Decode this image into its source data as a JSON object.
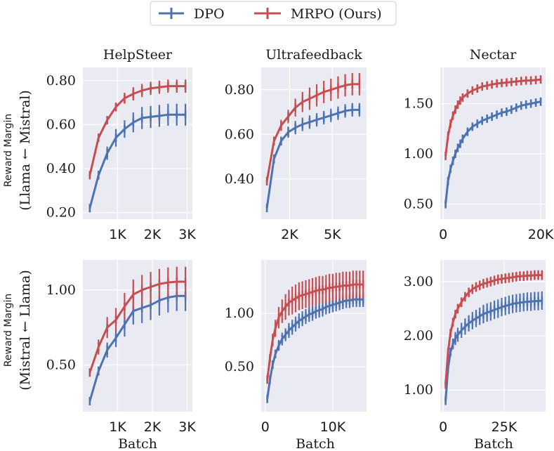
{
  "legend": {
    "entries": [
      {
        "label": "DPO",
        "color": "#4c72b0"
      },
      {
        "label": "MRPO (Ours)",
        "color": "#c44e52"
      }
    ]
  },
  "row_labels": [
    {
      "line1": "Reward Margin",
      "line2": "(Llama ← Mistral)"
    },
    {
      "line1": "Reward Margin",
      "line2": "(Mistral ← Llama)"
    }
  ],
  "xlabel": "Batch",
  "chart_data": [
    {
      "type": "line",
      "title": "HelpSteer",
      "row": 0,
      "col": 0,
      "xlim": [
        0,
        3150
      ],
      "ylim": [
        0.17,
        0.86
      ],
      "xticks": [
        1000,
        2000,
        3000
      ],
      "xticklabels": [
        "1K",
        "2K",
        "3K"
      ],
      "yticks": [
        0.2,
        0.4,
        0.6,
        0.8
      ],
      "yticklabels": [
        "0.20",
        "0.40",
        "0.60",
        "0.80"
      ],
      "series": [
        {
          "name": "DPO",
          "color": "#4c72b0",
          "x": [
            200,
            450,
            700,
            950,
            1200,
            1450,
            1700,
            1950,
            2200,
            2450,
            2700,
            2950
          ],
          "y": [
            0.22,
            0.37,
            0.47,
            0.54,
            0.58,
            0.61,
            0.63,
            0.635,
            0.64,
            0.645,
            0.645,
            0.645
          ],
          "err": [
            0.01,
            0.02,
            0.03,
            0.04,
            0.04,
            0.045,
            0.05,
            0.05,
            0.05,
            0.05,
            0.05,
            0.05
          ]
        },
        {
          "name": "MRPO (Ours)",
          "color": "#c44e52",
          "x": [
            200,
            450,
            700,
            950,
            1200,
            1450,
            1700,
            1950,
            2200,
            2450,
            2700,
            2950
          ],
          "y": [
            0.37,
            0.54,
            0.62,
            0.68,
            0.72,
            0.74,
            0.755,
            0.765,
            0.77,
            0.775,
            0.775,
            0.775
          ],
          "err": [
            0.01,
            0.015,
            0.015,
            0.02,
            0.025,
            0.03,
            0.03,
            0.03,
            0.03,
            0.03,
            0.03,
            0.03
          ]
        }
      ]
    },
    {
      "type": "line",
      "title": "Ultrafeedback",
      "row": 0,
      "col": 1,
      "xlim": [
        0,
        7400
      ],
      "ylim": [
        0.22,
        0.9
      ],
      "xticks": [
        2000,
        5000
      ],
      "xticklabels": [
        "2K",
        "5K"
      ],
      "yticks": [
        0.4,
        0.6,
        0.8
      ],
      "yticklabels": [
        "0.40",
        "0.60",
        "0.80"
      ],
      "series": [
        {
          "name": "DPO",
          "color": "#4c72b0",
          "x": [
            400,
            900,
            1400,
            1900,
            2400,
            2900,
            3400,
            3900,
            4400,
            4900,
            5400,
            5900,
            6400,
            6900
          ],
          "y": [
            0.27,
            0.49,
            0.57,
            0.61,
            0.63,
            0.645,
            0.655,
            0.665,
            0.675,
            0.685,
            0.695,
            0.705,
            0.71,
            0.71
          ],
          "err": [
            0.01,
            0.02,
            0.02,
            0.025,
            0.03,
            0.03,
            0.03,
            0.03,
            0.03,
            0.03,
            0.03,
            0.03,
            0.03,
            0.03
          ]
        },
        {
          "name": "MRPO (Ours)",
          "color": "#c44e52",
          "x": [
            400,
            900,
            1400,
            1900,
            2400,
            2900,
            3400,
            3900,
            4400,
            4900,
            5400,
            5900,
            6400,
            6900
          ],
          "y": [
            0.39,
            0.57,
            0.64,
            0.68,
            0.72,
            0.745,
            0.76,
            0.775,
            0.79,
            0.8,
            0.81,
            0.82,
            0.825,
            0.825
          ],
          "err": [
            0.01,
            0.02,
            0.025,
            0.03,
            0.04,
            0.045,
            0.05,
            0.05,
            0.05,
            0.05,
            0.05,
            0.05,
            0.05,
            0.05
          ]
        }
      ]
    },
    {
      "type": "line",
      "title": "Nectar",
      "row": 0,
      "col": 2,
      "xlim": [
        -600,
        21000
      ],
      "ylim": [
        0.35,
        1.86
      ],
      "xticks": [
        0,
        20000
      ],
      "xticklabels": [
        "0",
        "20K"
      ],
      "yticks": [
        0.5,
        1.0,
        1.5
      ],
      "yticklabels": [
        "0.50",
        "1.00",
        "1.50"
      ],
      "series": [
        {
          "name": "DPO",
          "color": "#4c72b0",
          "x": [
            500,
            1000,
            1500,
            2000,
            2500,
            3000,
            3500,
            4000,
            5000,
            6000,
            7000,
            8000,
            9000,
            10000,
            11000,
            12000,
            13000,
            14000,
            15000,
            16000,
            17000,
            18000,
            19000,
            20000
          ],
          "y": [
            0.5,
            0.73,
            0.85,
            0.93,
            1.0,
            1.06,
            1.1,
            1.15,
            1.22,
            1.27,
            1.3,
            1.33,
            1.35,
            1.37,
            1.39,
            1.41,
            1.42,
            1.44,
            1.46,
            1.48,
            1.49,
            1.5,
            1.51,
            1.52
          ],
          "err": [
            0.02,
            0.03,
            0.03,
            0.03,
            0.03,
            0.03,
            0.03,
            0.03,
            0.03,
            0.03,
            0.03,
            0.03,
            0.03,
            0.03,
            0.03,
            0.03,
            0.03,
            0.03,
            0.03,
            0.03,
            0.03,
            0.03,
            0.03,
            0.03
          ]
        },
        {
          "name": "MRPO (Ours)",
          "color": "#c44e52",
          "x": [
            500,
            1000,
            1500,
            2000,
            2500,
            3000,
            3500,
            4000,
            5000,
            6000,
            7000,
            8000,
            9000,
            10000,
            11000,
            12000,
            13000,
            14000,
            15000,
            16000,
            17000,
            18000,
            19000,
            20000
          ],
          "y": [
            0.98,
            1.18,
            1.3,
            1.38,
            1.44,
            1.49,
            1.53,
            1.56,
            1.6,
            1.63,
            1.65,
            1.67,
            1.68,
            1.69,
            1.7,
            1.705,
            1.71,
            1.715,
            1.72,
            1.725,
            1.73,
            1.73,
            1.735,
            1.74
          ],
          "err": [
            0.02,
            0.03,
            0.03,
            0.03,
            0.03,
            0.03,
            0.03,
            0.03,
            0.03,
            0.03,
            0.03,
            0.03,
            0.03,
            0.03,
            0.03,
            0.03,
            0.03,
            0.03,
            0.03,
            0.03,
            0.03,
            0.03,
            0.03,
            0.03
          ]
        }
      ]
    },
    {
      "type": "line",
      "title": "",
      "row": 1,
      "col": 0,
      "xlim": [
        0,
        3150
      ],
      "ylim": [
        0.19,
        1.2
      ],
      "xticks": [
        1000,
        2000,
        3000
      ],
      "xticklabels": [
        "1K",
        "2K",
        "3K"
      ],
      "yticks": [
        0.5,
        1.0
      ],
      "yticklabels": [
        "0.50",
        "1.00"
      ],
      "series": [
        {
          "name": "DPO",
          "color": "#4c72b0",
          "x": [
            200,
            450,
            700,
            950,
            1200,
            1450,
            1700,
            1950,
            2200,
            2450,
            2700,
            2950
          ],
          "y": [
            0.26,
            0.46,
            0.6,
            0.68,
            0.77,
            0.86,
            0.88,
            0.9,
            0.93,
            0.95,
            0.96,
            0.96
          ],
          "err": [
            0.01,
            0.03,
            0.05,
            0.06,
            0.08,
            0.09,
            0.1,
            0.1,
            0.1,
            0.1,
            0.1,
            0.1
          ]
        },
        {
          "name": "MRPO (Ours)",
          "color": "#c44e52",
          "x": [
            200,
            450,
            700,
            950,
            1200,
            1450,
            1700,
            1950,
            2200,
            2450,
            2700,
            2950
          ],
          "y": [
            0.45,
            0.62,
            0.75,
            0.8,
            0.89,
            0.97,
            1.0,
            1.02,
            1.04,
            1.05,
            1.055,
            1.055
          ],
          "err": [
            0.02,
            0.05,
            0.07,
            0.08,
            0.09,
            0.1,
            0.1,
            0.1,
            0.1,
            0.1,
            0.1,
            0.1
          ]
        }
      ]
    },
    {
      "type": "line",
      "title": "",
      "row": 1,
      "col": 1,
      "xlim": [
        -600,
        15000
      ],
      "ylim": [
        0.08,
        1.5
      ],
      "xticks": [
        0,
        10000
      ],
      "xticklabels": [
        "0",
        "10K"
      ],
      "yticks": [
        0.5,
        1.0
      ],
      "yticklabels": [
        "0.50",
        "1.00"
      ],
      "series": [
        {
          "name": "DPO",
          "color": "#4c72b0",
          "x": [
            300,
            700,
            1100,
            1500,
            2000,
            2500,
            3000,
            3500,
            4000,
            4500,
            5000,
            5500,
            6000,
            6500,
            7000,
            7500,
            8000,
            8500,
            9000,
            9500,
            10000,
            10500,
            11000,
            11500,
            12000,
            12500,
            13000,
            13500,
            14000,
            14500
          ],
          "y": [
            0.2,
            0.38,
            0.52,
            0.62,
            0.7,
            0.76,
            0.8,
            0.84,
            0.87,
            0.9,
            0.93,
            0.95,
            0.97,
            0.99,
            1.0,
            1.02,
            1.03,
            1.04,
            1.06,
            1.07,
            1.08,
            1.09,
            1.1,
            1.11,
            1.12,
            1.12,
            1.13,
            1.13,
            1.13,
            1.13
          ],
          "err": [
            0.01,
            0.02,
            0.03,
            0.04,
            0.05,
            0.06,
            0.06,
            0.07,
            0.07,
            0.07,
            0.07,
            0.07,
            0.07,
            0.07,
            0.07,
            0.07,
            0.07,
            0.07,
            0.07,
            0.07,
            0.07,
            0.07,
            0.07,
            0.07,
            0.07,
            0.07,
            0.07,
            0.07,
            0.07,
            0.07
          ]
        },
        {
          "name": "MRPO (Ours)",
          "color": "#c44e52",
          "x": [
            300,
            700,
            1100,
            1500,
            2000,
            2500,
            3000,
            3500,
            4000,
            4500,
            5000,
            5500,
            6000,
            6500,
            7000,
            7500,
            8000,
            8500,
            9000,
            9500,
            10000,
            10500,
            11000,
            11500,
            12000,
            12500,
            13000,
            13500,
            14000,
            14500
          ],
          "y": [
            0.38,
            0.58,
            0.75,
            0.86,
            0.96,
            1.02,
            1.06,
            1.1,
            1.12,
            1.14,
            1.16,
            1.17,
            1.18,
            1.19,
            1.2,
            1.21,
            1.22,
            1.22,
            1.23,
            1.24,
            1.24,
            1.25,
            1.25,
            1.26,
            1.26,
            1.26,
            1.27,
            1.27,
            1.27,
            1.27
          ],
          "err": [
            0.02,
            0.04,
            0.06,
            0.08,
            0.1,
            0.11,
            0.12,
            0.12,
            0.13,
            0.13,
            0.13,
            0.13,
            0.13,
            0.13,
            0.13,
            0.13,
            0.13,
            0.13,
            0.13,
            0.13,
            0.13,
            0.13,
            0.13,
            0.13,
            0.13,
            0.13,
            0.13,
            0.13,
            0.13,
            0.13
          ]
        }
      ]
    },
    {
      "type": "line",
      "title": "",
      "row": 1,
      "col": 2,
      "xlim": [
        -1200,
        42000
      ],
      "ylim": [
        0.6,
        3.4
      ],
      "xticks": [
        0,
        25000
      ],
      "xticklabels": [
        "0",
        "25K"
      ],
      "yticks": [
        1.0,
        2.0,
        3.0
      ],
      "yticklabels": [
        "1.00",
        "2.00",
        "3.00"
      ],
      "series": [
        {
          "name": "DPO",
          "color": "#4c72b0",
          "x": [
            1000,
            2000,
            3000,
            4000,
            5000,
            6000,
            7500,
            9000,
            10500,
            12000,
            13500,
            15000,
            16500,
            18000,
            19500,
            21000,
            22500,
            24000,
            25500,
            27000,
            28500,
            30000,
            31500,
            33000,
            34500,
            36000,
            37500,
            39000,
            40500
          ],
          "y": [
            0.8,
            1.4,
            1.7,
            1.85,
            1.95,
            2.02,
            2.1,
            2.17,
            2.23,
            2.28,
            2.32,
            2.36,
            2.4,
            2.43,
            2.45,
            2.48,
            2.5,
            2.53,
            2.55,
            2.57,
            2.59,
            2.6,
            2.61,
            2.62,
            2.63,
            2.63,
            2.64,
            2.64,
            2.65
          ],
          "err": [
            0.03,
            0.06,
            0.08,
            0.1,
            0.12,
            0.13,
            0.14,
            0.15,
            0.15,
            0.16,
            0.16,
            0.16,
            0.17,
            0.17,
            0.17,
            0.17,
            0.17,
            0.17,
            0.17,
            0.17,
            0.17,
            0.17,
            0.17,
            0.17,
            0.17,
            0.17,
            0.17,
            0.17,
            0.17
          ]
        },
        {
          "name": "MRPO (Ours)",
          "color": "#c44e52",
          "x": [
            1000,
            2000,
            3000,
            4000,
            5000,
            6000,
            7500,
            9000,
            10500,
            12000,
            13500,
            15000,
            16500,
            18000,
            19500,
            21000,
            22500,
            24000,
            25500,
            27000,
            28500,
            30000,
            31500,
            33000,
            34500,
            36000,
            37500,
            39000,
            40500
          ],
          "y": [
            1.1,
            1.7,
            2.05,
            2.25,
            2.4,
            2.5,
            2.62,
            2.72,
            2.8,
            2.86,
            2.9,
            2.93,
            2.96,
            2.98,
            3.0,
            3.02,
            3.04,
            3.05,
            3.06,
            3.07,
            3.08,
            3.09,
            3.1,
            3.1,
            3.11,
            3.11,
            3.12,
            3.12,
            3.12
          ],
          "err": [
            0.03,
            0.06,
            0.07,
            0.08,
            0.08,
            0.09,
            0.09,
            0.09,
            0.09,
            0.09,
            0.09,
            0.09,
            0.09,
            0.09,
            0.09,
            0.09,
            0.09,
            0.09,
            0.09,
            0.09,
            0.09,
            0.09,
            0.09,
            0.09,
            0.09,
            0.09,
            0.09,
            0.09,
            0.09
          ]
        }
      ]
    }
  ]
}
